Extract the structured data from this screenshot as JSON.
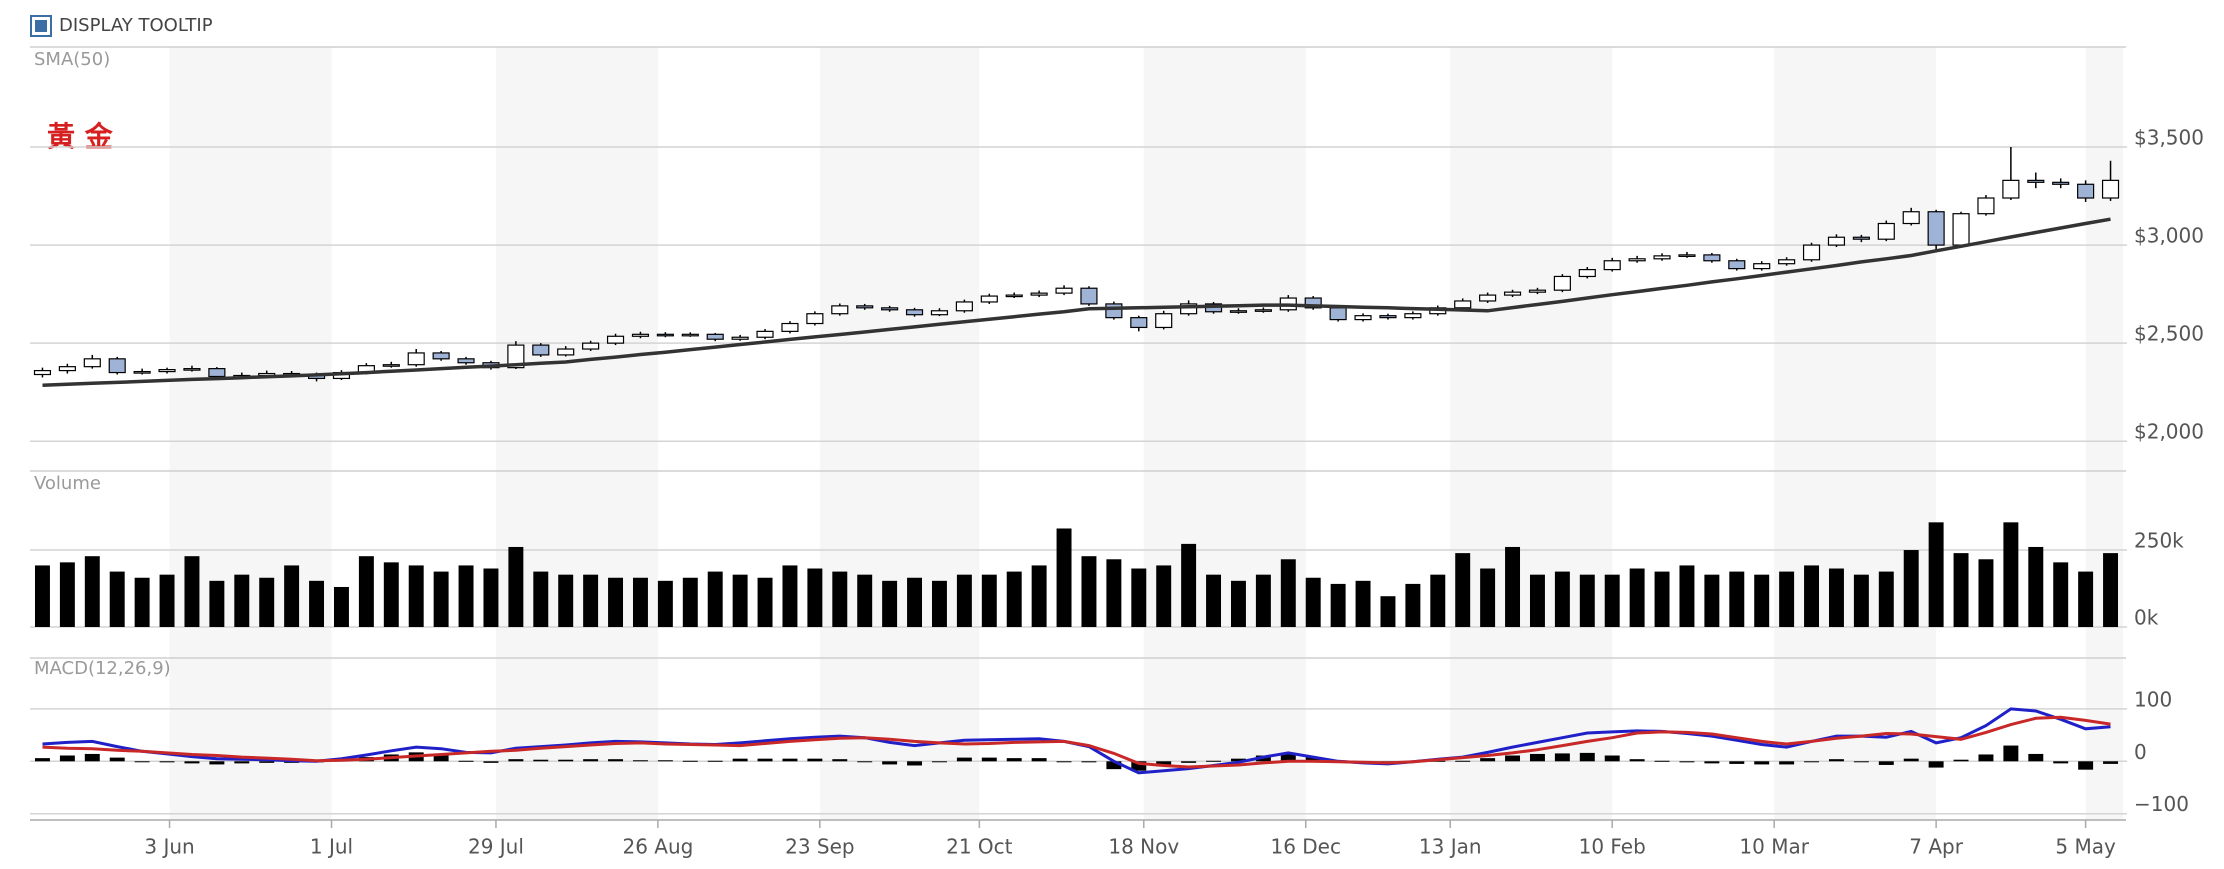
{
  "tooltip_toggle": "DISPLAY TOOLTIP",
  "chart_data": [
    {
      "type": "candlestick",
      "annotation": "黃 金",
      "up_color": "#ffffff",
      "down_color": "#9fb3d6",
      "edge_color": "#000000",
      "xlim": [
        0,
        84
      ],
      "ylim": [
        1950,
        4010
      ],
      "yticks": [
        {
          "value": 2000,
          "label": "$2,000"
        },
        {
          "value": 2500,
          "label": "$2,500"
        },
        {
          "value": 3000,
          "label": "$3,000"
        },
        {
          "value": 3500,
          "label": "$3,500"
        }
      ],
      "grid": true,
      "open": [
        2340,
        2360,
        2380,
        2420,
        2350,
        2355,
        2365,
        2370,
        2330,
        2335,
        2345,
        2340,
        2320,
        2350,
        2385,
        2390,
        2450,
        2420,
        2400,
        2375,
        2490,
        2440,
        2470,
        2500,
        2535,
        2545,
        2540,
        2545,
        2520,
        2530,
        2560,
        2600,
        2650,
        2690,
        2680,
        2670,
        2645,
        2665,
        2710,
        2740,
        2745,
        2755,
        2780,
        2700,
        2630,
        2580,
        2650,
        2700,
        2660,
        2665,
        2670,
        2730,
        2680,
        2620,
        2640,
        2630,
        2650,
        2680,
        2715,
        2745,
        2760,
        2770,
        2840,
        2875,
        2920,
        2930,
        2945,
        2950,
        2920,
        2880,
        2905,
        2925,
        3000,
        3040,
        3030,
        3110,
        3170,
        3000,
        3160,
        3240,
        3330,
        3320,
        3310,
        3240
      ],
      "high": [
        2375,
        2395,
        2440,
        2430,
        2370,
        2375,
        2385,
        2378,
        2350,
        2360,
        2358,
        2350,
        2362,
        2398,
        2405,
        2470,
        2460,
        2430,
        2410,
        2510,
        2500,
        2485,
        2512,
        2548,
        2558,
        2556,
        2555,
        2552,
        2542,
        2572,
        2612,
        2662,
        2702,
        2700,
        2690,
        2680,
        2678,
        2722,
        2752,
        2758,
        2768,
        2795,
        2790,
        2712,
        2640,
        2665,
        2718,
        2710,
        2678,
        2682,
        2745,
        2740,
        2690,
        2652,
        2650,
        2662,
        2692,
        2728,
        2758,
        2772,
        2782,
        2852,
        2888,
        2935,
        2945,
        2958,
        2965,
        2960,
        2930,
        2918,
        2938,
        3012,
        3055,
        3052,
        3125,
        3190,
        3180,
        3170,
        3255,
        3500,
        3370,
        3340,
        3330,
        3430
      ],
      "low": [
        2325,
        2345,
        2370,
        2340,
        2340,
        2345,
        2355,
        2318,
        2320,
        2325,
        2328,
        2305,
        2312,
        2340,
        2375,
        2380,
        2410,
        2390,
        2365,
        2368,
        2430,
        2432,
        2460,
        2490,
        2525,
        2530,
        2532,
        2510,
        2512,
        2520,
        2550,
        2590,
        2640,
        2670,
        2660,
        2635,
        2638,
        2655,
        2700,
        2730,
        2735,
        2745,
        2690,
        2620,
        2560,
        2570,
        2640,
        2650,
        2650,
        2655,
        2660,
        2670,
        2610,
        2610,
        2620,
        2620,
        2640,
        2668,
        2705,
        2735,
        2750,
        2760,
        2830,
        2865,
        2910,
        2920,
        2935,
        2910,
        2870,
        2870,
        2895,
        2915,
        2990,
        3015,
        3020,
        3100,
        2970,
        2990,
        3150,
        3230,
        3290,
        3290,
        3220,
        3225
      ],
      "close": [
        2360,
        2380,
        2420,
        2350,
        2355,
        2365,
        2370,
        2330,
        2335,
        2345,
        2340,
        2320,
        2350,
        2385,
        2390,
        2450,
        2420,
        2400,
        2375,
        2490,
        2440,
        2470,
        2500,
        2535,
        2545,
        2540,
        2545,
        2520,
        2530,
        2560,
        2600,
        2650,
        2690,
        2680,
        2670,
        2645,
        2665,
        2710,
        2740,
        2745,
        2755,
        2780,
        2700,
        2630,
        2580,
        2650,
        2700,
        2660,
        2665,
        2670,
        2730,
        2680,
        2620,
        2640,
        2630,
        2650,
        2680,
        2715,
        2745,
        2760,
        2770,
        2840,
        2875,
        2920,
        2930,
        2945,
        2950,
        2920,
        2880,
        2905,
        2925,
        3000,
        3040,
        3030,
        3110,
        3170,
        3000,
        3160,
        3240,
        3330,
        3320,
        3310,
        3240,
        3330
      ],
      "sma": {
        "name": "SMA(50)",
        "color": "#333333",
        "values": [
          2285,
          2290,
          2295,
          2300,
          2305,
          2310,
          2315,
          2319,
          2324,
          2329,
          2333,
          2338,
          2344,
          2350,
          2357,
          2363,
          2370,
          2377,
          2383,
          2390,
          2397,
          2404,
          2417,
          2429,
          2442,
          2454,
          2467,
          2480,
          2493,
          2506,
          2519,
          2532,
          2544,
          2557,
          2570,
          2583,
          2596,
          2609,
          2622,
          2635,
          2648,
          2660,
          2675,
          2678,
          2680,
          2683,
          2686,
          2688,
          2691,
          2694,
          2694,
          2690,
          2687,
          2683,
          2680,
          2676,
          2673,
          2669,
          2665,
          2681,
          2697,
          2713,
          2730,
          2747,
          2763,
          2779,
          2795,
          2812,
          2828,
          2845,
          2862,
          2879,
          2896,
          2914,
          2930,
          2947,
          2971,
          2994,
          3017,
          3041,
          3064,
          3087,
          3110,
          3132
        ]
      }
    },
    {
      "type": "bar",
      "title": "Volume",
      "color": "#000000",
      "xlim": [
        0,
        84
      ],
      "ylim": [
        0,
        510000
      ],
      "yticks": [
        {
          "value": 0,
          "label": "0k"
        },
        {
          "value": 250000,
          "label": "250k"
        }
      ],
      "grid": true,
      "values": [
        200000,
        210000,
        230000,
        180000,
        160000,
        170000,
        230000,
        150000,
        170000,
        160000,
        200000,
        150000,
        130000,
        230000,
        210000,
        200000,
        180000,
        200000,
        190000,
        260000,
        180000,
        170000,
        170000,
        160000,
        160000,
        150000,
        160000,
        180000,
        170000,
        160000,
        200000,
        190000,
        180000,
        170000,
        150000,
        160000,
        150000,
        170000,
        170000,
        180000,
        200000,
        320000,
        230000,
        220000,
        190000,
        200000,
        270000,
        170000,
        150000,
        170000,
        220000,
        160000,
        140000,
        150000,
        100000,
        140000,
        170000,
        240000,
        190000,
        260000,
        170000,
        180000,
        170000,
        170000,
        190000,
        180000,
        200000,
        170000,
        180000,
        170000,
        180000,
        200000,
        190000,
        170000,
        180000,
        250000,
        340000,
        240000,
        220000,
        340000,
        260000,
        210000,
        180000,
        240000
      ]
    },
    {
      "type": "line",
      "title": "MACD(12,26,9)",
      "xlim": [
        0,
        84
      ],
      "xticks": [
        {
          "value": 5.6,
          "label": "3 Jun"
        },
        {
          "value": 12.1,
          "label": "1 Jul"
        },
        {
          "value": 18.7,
          "label": "29 Jul"
        },
        {
          "value": 25.2,
          "label": "26 Aug"
        },
        {
          "value": 31.7,
          "label": "23 Sep"
        },
        {
          "value": 38.1,
          "label": "21 Oct"
        },
        {
          "value": 44.7,
          "label": "18 Nov"
        },
        {
          "value": 51.2,
          "label": "16 Dec"
        },
        {
          "value": 57.0,
          "label": "13 Jan"
        },
        {
          "value": 63.5,
          "label": "10 Feb"
        },
        {
          "value": 70.0,
          "label": "10 Mar"
        },
        {
          "value": 76.5,
          "label": "7 Apr"
        },
        {
          "value": 82.5,
          "label": "5 May"
        }
      ],
      "ylim": [
        -112,
        197
      ],
      "yticks": [
        {
          "value": -100,
          "label": "−100"
        },
        0,
        100
      ],
      "grid": true,
      "lines": [
        {
          "color": "#2020c8",
          "values": [
            33,
            36,
            38,
            28,
            19,
            14,
            9,
            5,
            4,
            3,
            1,
            0,
            5,
            12,
            20,
            27,
            24,
            17,
            16,
            25,
            28,
            31,
            35,
            38,
            37,
            35,
            33,
            32,
            35,
            39,
            43,
            46,
            48,
            45,
            36,
            30,
            35,
            40,
            41,
            42,
            43,
            38,
            28,
            0,
            -22,
            -18,
            -14,
            -8,
            -2,
            8,
            16,
            8,
            0,
            -3,
            -5,
            -1,
            4,
            8,
            17,
            27,
            36,
            45,
            54,
            56,
            58,
            57,
            53,
            48,
            40,
            32,
            27,
            38,
            48,
            48,
            46,
            57,
            35,
            45,
            68,
            100,
            96,
            80,
            62,
            66
          ]
        },
        {
          "color": "#c82828",
          "values": [
            27,
            25,
            24,
            21,
            19,
            16,
            13,
            11,
            8,
            6,
            4,
            1,
            2,
            4,
            7,
            10,
            13,
            16,
            19,
            21,
            25,
            28,
            31,
            34,
            35,
            33,
            32,
            31,
            30,
            34,
            38,
            41,
            44,
            45,
            42,
            38,
            35,
            33,
            34,
            36,
            37,
            38,
            30,
            15,
            -4,
            -8,
            -11,
            -9,
            -7,
            -3,
            0,
            0,
            -1,
            -2,
            -3,
            -1,
            3,
            7,
            11,
            16,
            22,
            30,
            38,
            45,
            54,
            56,
            55,
            52,
            45,
            38,
            33,
            38,
            44,
            48,
            53,
            52,
            47,
            42,
            55,
            70,
            82,
            84,
            78,
            71
          ]
        }
      ],
      "histogram": {
        "color": "#000000",
        "values": [
          6,
          11,
          14,
          7,
          0,
          -2,
          -4,
          -6,
          -4,
          -3,
          -3,
          -1,
          3,
          8,
          13,
          17,
          11,
          1,
          -3,
          4,
          3,
          3,
          4,
          4,
          2,
          2,
          1,
          1,
          5,
          5,
          5,
          5,
          4,
          0,
          -6,
          -8,
          0,
          7,
          7,
          6,
          6,
          0,
          -2,
          -15,
          -18,
          -10,
          -3,
          1,
          5,
          11,
          16,
          8,
          1,
          -1,
          -2,
          0,
          1,
          1,
          6,
          11,
          14,
          15,
          16,
          11,
          4,
          1,
          -2,
          -4,
          -5,
          -6,
          -6,
          0,
          4,
          0,
          -7,
          5,
          -12,
          3,
          13,
          30,
          14,
          -4,
          -16,
          -5
        ]
      }
    }
  ]
}
